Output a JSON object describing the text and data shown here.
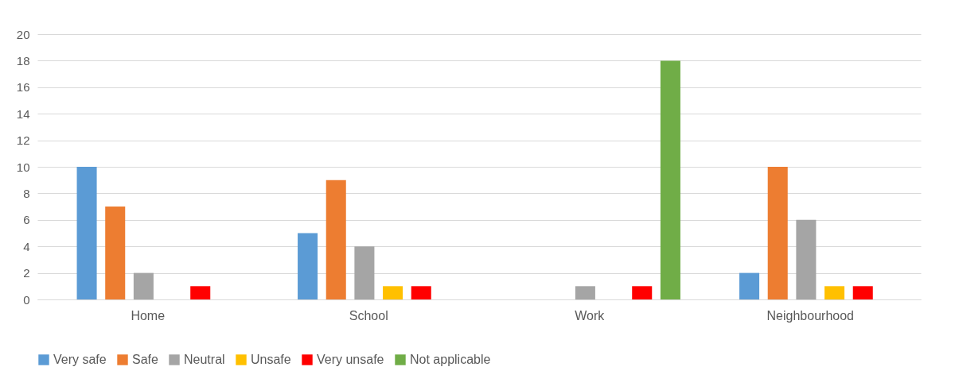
{
  "chart_data": {
    "type": "bar",
    "categories": [
      "Home",
      "School",
      "Work",
      "Neighbourhood"
    ],
    "series": [
      {
        "name": "Very safe",
        "color": "#5b9bd5",
        "values": [
          10,
          5,
          0,
          2
        ]
      },
      {
        "name": "Safe",
        "color": "#ed7d31",
        "values": [
          7,
          9,
          0,
          10
        ]
      },
      {
        "name": "Neutral",
        "color": "#a5a5a5",
        "values": [
          2,
          4,
          1,
          6
        ]
      },
      {
        "name": "Unsafe",
        "color": "#ffc000",
        "values": [
          0,
          1,
          0,
          1
        ]
      },
      {
        "name": "Very unsafe",
        "color": "#ff0000",
        "values": [
          1,
          1,
          1,
          1
        ]
      },
      {
        "name": "Not applicable",
        "color": "#70ad47",
        "values": [
          0,
          0,
          18,
          0
        ]
      }
    ],
    "ylim": [
      0,
      20
    ],
    "yticks": [
      0,
      2,
      4,
      6,
      8,
      10,
      12,
      14,
      16,
      18,
      20
    ],
    "grid": "y",
    "legend": "bottom"
  }
}
